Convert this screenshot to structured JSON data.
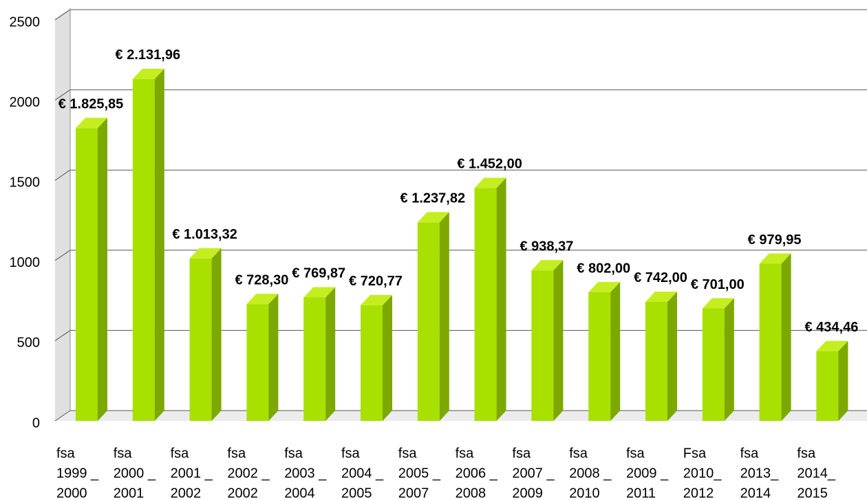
{
  "chart_data": {
    "type": "bar3d",
    "categories": [
      [
        "fsa",
        "1999 _",
        "2000"
      ],
      [
        "fsa",
        "2000 _",
        "2001"
      ],
      [
        "fsa",
        "2001 _",
        "2002"
      ],
      [
        "fsa",
        "2002 _",
        "2002"
      ],
      [
        "fsa",
        "2003 _",
        "2004"
      ],
      [
        "fsa",
        "2004 _",
        "2005"
      ],
      [
        "fsa",
        "2005 _",
        "2007"
      ],
      [
        "fsa",
        "2006 _",
        "2008"
      ],
      [
        "fsa",
        "2007 _",
        "2009"
      ],
      [
        "fsa",
        "2008 _",
        "2010"
      ],
      [
        "fsa",
        "2009 _",
        "2011"
      ],
      [
        "Fsa",
        "2010_",
        "2012"
      ],
      [
        "fsa",
        "2013_",
        "2014"
      ],
      [
        "fsa",
        "2014_",
        "2015"
      ]
    ],
    "values": [
      1825.85,
      2131.96,
      1013.32,
      728.3,
      769.87,
      720.77,
      1237.82,
      1452.0,
      938.37,
      802.0,
      742.0,
      701.0,
      979.95,
      434.46
    ],
    "value_labels": [
      "€ 1.825,85",
      "€ 2.131,96",
      "€ 1.013,32",
      "€ 728,30",
      "€ 769,87",
      "€ 720,77",
      "€ 1.237,82",
      "€ 1.452,00",
      "€ 938,37",
      "€ 802,00",
      "€ 742,00",
      "€ 701,00",
      "€ 979,95",
      "€ 434,46"
    ],
    "color": "#a8e000",
    "ylim": [
      0,
      2500
    ],
    "yticks": [
      0,
      500,
      1000,
      1500,
      2000,
      2500
    ],
    "grid": true
  }
}
